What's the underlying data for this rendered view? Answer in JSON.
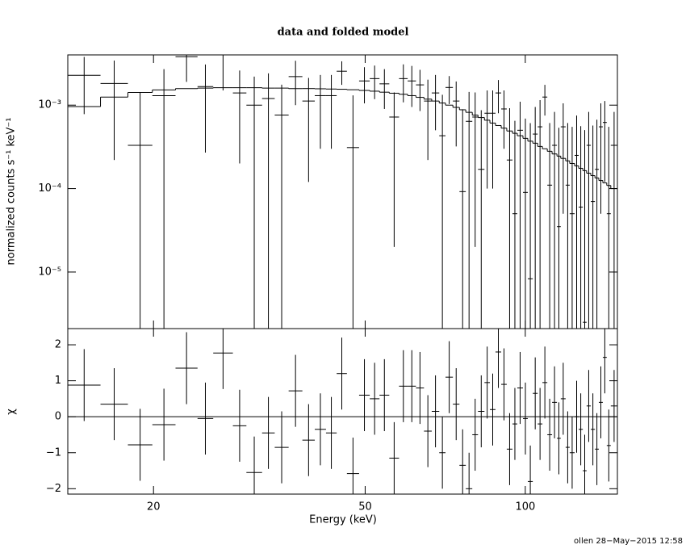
{
  "footer": "ollen 28−May−2015 12:58",
  "chart_data": [
    {
      "type": "spectrum",
      "title": "data and folded model",
      "ylabel": "normalized counts s⁻¹ keV⁻¹",
      "log_x": true,
      "log_y": true,
      "color": "#000000",
      "xlim": [
        13.8,
        149
      ],
      "ylim": [
        2.1e-06,
        0.004
      ],
      "yticks": [
        {
          "value": 1e-05,
          "label": "10⁻⁵"
        },
        {
          "value": 0.0001,
          "label": "10⁻⁴"
        },
        {
          "value": 0.001,
          "label": "10⁻³"
        }
      ],
      "bin_edges": [
        13.8,
        15.9,
        17.9,
        19.9,
        22.0,
        24.2,
        25.9,
        28.2,
        29.9,
        32.0,
        33.8,
        35.9,
        38.1,
        40.2,
        42.2,
        44.2,
        46.2,
        48.7,
        51.0,
        53.2,
        55.5,
        57.9,
        60.1,
        62.3,
        64.5,
        66.7,
        68.9,
        70.8,
        73.1,
        75.2,
        77.3,
        79.5,
        81.5,
        83.8,
        85.8,
        87.9,
        90.1,
        92.3,
        94.6,
        96.6,
        99.0,
        101.1,
        103.3,
        105.5,
        107.7,
        110.0,
        112.3,
        114.7,
        116.6,
        119.1,
        121.2,
        123.8,
        126.0,
        128.3,
        130.4,
        132.8,
        135.2,
        137.5,
        139.9,
        142.3,
        144.8,
        149
      ],
      "values": [
        0.00228,
        0.00182,
        0.00033,
        0.0013,
        0.0038,
        0.00167,
        0.004,
        0.0014,
        0.001,
        0.0012,
        0.00076,
        0.0022,
        0.00112,
        0.0013,
        0.0013,
        0.00255,
        0.00031,
        0.00195,
        0.00208,
        0.0018,
        0.00072,
        0.00208,
        0.00195,
        0.00175,
        0.00112,
        0.0014,
        0.00043,
        0.00163,
        0.00112,
        9.2e-05,
        0.00064,
        0.00072,
        0.00017,
        0.0008,
        0.0008,
        0.0014,
        0.0009,
        0.00022,
        5e-05,
        0.0005,
        9e-05,
        8.3e-06,
        0.00045,
        0.00055,
        0.00125,
        0.00011,
        0.00033,
        3.5e-05,
        0.00055,
        0.00011,
        5e-05,
        0.00025,
        6e-05,
        2.5e-06,
        0.00033,
        7e-05,
        0.00017,
        0.00055,
        0.00062,
        5e-05,
        0.00033
      ],
      "errors": [
        0.0015,
        0.0016,
        0.0011,
        0.0014,
        0.0019,
        0.0014,
        0.0025,
        0.0012,
        0.0012,
        0.0012,
        0.001,
        0.0012,
        0.001,
        0.001,
        0.001,
        0.0008,
        0.001,
        0.0009,
        0.0009,
        0.0009,
        0.0007,
        0.001,
        0.001,
        0.0009,
        0.0009,
        0.0009,
        0.0009,
        0.0006,
        0.0008,
        0.0008,
        0.0008,
        0.0007,
        0.0007,
        0.0007,
        0.0007,
        0.0006,
        0.0006,
        0.0007,
        0.0006,
        0.0006,
        0.0006,
        0.0006,
        0.0005,
        0.0006,
        0.0005,
        0.0005,
        0.0005,
        0.0005,
        0.0005,
        0.0005,
        0.0005,
        0.0005,
        0.0005,
        0.0005,
        0.0005,
        0.0005,
        0.0005,
        0.0005,
        0.0005,
        0.0005,
        0.0005
      ],
      "model": [
        0.00096,
        0.00125,
        0.00142,
        0.00152,
        0.00158,
        0.0016,
        0.00162,
        0.00162,
        0.00162,
        0.0016,
        0.0016,
        0.00158,
        0.00158,
        0.00157,
        0.00156,
        0.00155,
        0.00153,
        0.0015,
        0.00147,
        0.00143,
        0.00139,
        0.00135,
        0.0013,
        0.00124,
        0.00118,
        0.00112,
        0.00106,
        0.001,
        0.00094,
        0.00088,
        0.00082,
        0.00076,
        0.00071,
        0.00066,
        0.00061,
        0.00057,
        0.00053,
        0.00049,
        0.00046,
        0.00043,
        0.0004,
        0.00037,
        0.00035,
        0.00032,
        0.0003,
        0.00028,
        0.00026,
        0.000245,
        0.00023,
        0.000215,
        0.0002,
        0.000187,
        0.000175,
        0.000164,
        0.000153,
        0.000143,
        0.000134,
        0.000125,
        0.000117,
        0.000109,
        0.0001
      ]
    },
    {
      "type": "residual",
      "xlabel": "Energy (keV)",
      "ylabel": "χ",
      "log_x": true,
      "color": "#000000",
      "zero_color": "#00cc00",
      "xlim": [
        13.8,
        149
      ],
      "xticks": [
        20,
        50,
        100
      ],
      "ylim": [
        -2.15,
        2.45
      ],
      "yticks": [
        {
          "value": -2,
          "label": "−2"
        },
        {
          "value": -1,
          "label": "−1"
        },
        0,
        1,
        2
      ],
      "values": [
        0.88,
        0.35,
        -0.78,
        -0.22,
        1.35,
        -0.05,
        1.77,
        -0.25,
        -1.55,
        -0.45,
        -0.85,
        0.72,
        -0.65,
        -0.35,
        -0.45,
        1.2,
        -1.58,
        0.6,
        0.5,
        0.6,
        -1.15,
        0.85,
        0.85,
        0.8,
        -0.4,
        0.15,
        -1.0,
        1.1,
        0.35,
        -1.35,
        -2.0,
        -0.5,
        0.15,
        0.95,
        0.2,
        1.8,
        0.9,
        -0.9,
        -0.2,
        0.8,
        -0.05,
        -1.8,
        0.65,
        -0.2,
        0.95,
        -0.5,
        0.4,
        -0.6,
        0.5,
        -0.85,
        -1.0,
        0.0,
        -0.35,
        -1.5,
        0.3,
        -0.35,
        -0.9,
        0.4,
        1.65,
        -0.8,
        0.3
      ],
      "errors": [
        1,
        1,
        1,
        1,
        1,
        1,
        1,
        1,
        1,
        1,
        1,
        1,
        1,
        1,
        1,
        1,
        1,
        1,
        1,
        1,
        1,
        1,
        1,
        1,
        1,
        1,
        1,
        1,
        1,
        1,
        1,
        1,
        1,
        1,
        1,
        1,
        1,
        1,
        1,
        1,
        1,
        1,
        1,
        1,
        1,
        1,
        1,
        1,
        1,
        1,
        1,
        1,
        1,
        1,
        1,
        1,
        1,
        1,
        1,
        1,
        1
      ]
    }
  ]
}
